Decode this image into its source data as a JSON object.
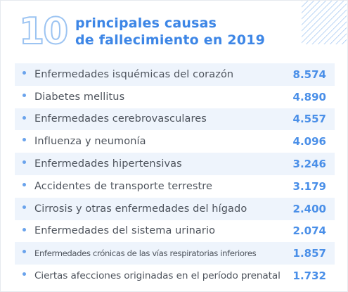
{
  "header": {
    "number": "10",
    "title_lines": [
      "principales causas",
      "de fallecimiento en 2019"
    ]
  },
  "table": {
    "rows": [
      [
        "Enfermedades isquémicas del corazón",
        "8.574"
      ],
      [
        "Diabetes mellitus",
        "4.890"
      ],
      [
        "Enfermedades cerebrovasculares",
        "4.557"
      ],
      [
        "Influenza y neumonía",
        "4.096"
      ],
      [
        "Enfermedades hipertensivas",
        "3.246"
      ],
      [
        "Accidentes de transporte terrestre",
        "3.179"
      ],
      [
        "Cirrosis y otras enfermedades del hígado",
        "2.400"
      ],
      [
        "Enfermedades del sistema urinario",
        "2.074"
      ],
      [
        "Enfermedades crónicas de las vías respiratorias inferiores",
        "1.857"
      ],
      [
        "Ciertas afecciones originadas en el período prenatal",
        "1.732"
      ]
    ]
  }
}
